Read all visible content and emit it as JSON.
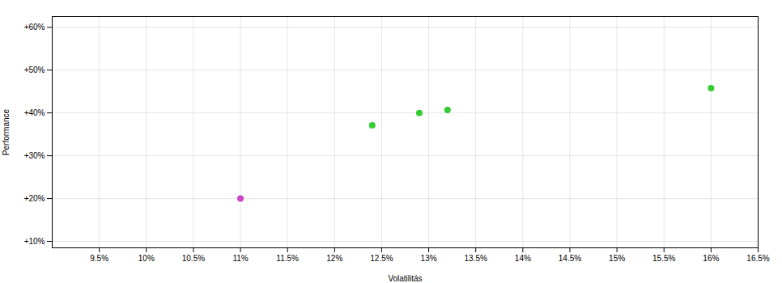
{
  "chart_data": {
    "type": "scatter",
    "xlabel": "Volatilitás",
    "ylabel": "Performance",
    "x": [
      0.11,
      0.124,
      0.129,
      0.132,
      0.16
    ],
    "values": [
      0.2,
      0.371,
      0.4,
      0.407,
      0.458
    ],
    "colors": [
      "#cc44cc",
      "#33cc33",
      "#33cc33",
      "#33cc33",
      "#33cc33"
    ],
    "xlim": [
      0.09,
      0.165
    ],
    "ylim": [
      0.085,
      0.625
    ],
    "xticks": [
      {
        "value": 0.095,
        "label": "9.5%"
      },
      {
        "value": 0.1,
        "label": "10%"
      },
      {
        "value": 0.105,
        "label": "10.5%"
      },
      {
        "value": 0.11,
        "label": "11%"
      },
      {
        "value": 0.115,
        "label": "11.5%"
      },
      {
        "value": 0.12,
        "label": "12%"
      },
      {
        "value": 0.125,
        "label": "12.5%"
      },
      {
        "value": 0.13,
        "label": "13%"
      },
      {
        "value": 0.135,
        "label": "13.5%"
      },
      {
        "value": 0.14,
        "label": "14%"
      },
      {
        "value": 0.145,
        "label": "14.5%"
      },
      {
        "value": 0.15,
        "label": "15%"
      },
      {
        "value": 0.155,
        "label": "15.5%"
      },
      {
        "value": 0.16,
        "label": "16%"
      },
      {
        "value": 0.165,
        "label": "16.5%"
      }
    ],
    "yticks": [
      {
        "value": 0.1,
        "label": "+10%"
      },
      {
        "value": 0.2,
        "label": "+20%"
      },
      {
        "value": 0.3,
        "label": "+30%"
      },
      {
        "value": 0.4,
        "label": "+40%"
      },
      {
        "value": 0.5,
        "label": "+50%"
      },
      {
        "value": 0.6,
        "label": "+60%"
      }
    ],
    "grid": true
  }
}
